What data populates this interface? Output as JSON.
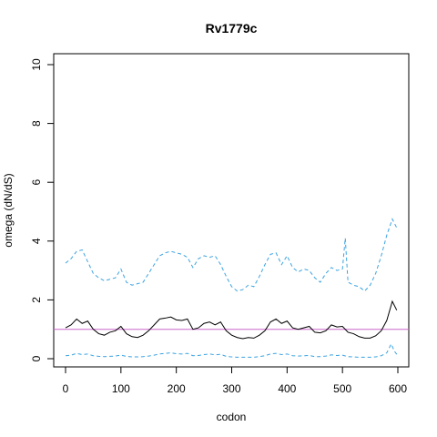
{
  "chart_data": {
    "type": "line",
    "title": "Rv1779c",
    "xlabel": "codon",
    "ylabel": "omega (dN/dS)",
    "xlim": [
      0,
      600
    ],
    "ylim": [
      0,
      10
    ],
    "x_ticks": [
      0,
      100,
      200,
      300,
      400,
      500,
      600
    ],
    "y_ticks": [
      0,
      2,
      4,
      6,
      8,
      10
    ],
    "reference_line": {
      "y": 1,
      "color": "#cc66cc"
    },
    "grid": false,
    "legend": "none",
    "series": [
      {
        "role": "estimate",
        "color": "#000000",
        "style": "solid",
        "points": [
          [
            0,
            1.05
          ],
          [
            10,
            1.15
          ],
          [
            20,
            1.35
          ],
          [
            30,
            1.2
          ],
          [
            40,
            1.28
          ],
          [
            50,
            1.0
          ],
          [
            60,
            0.85
          ],
          [
            70,
            0.8
          ],
          [
            80,
            0.9
          ],
          [
            90,
            0.95
          ],
          [
            100,
            1.1
          ],
          [
            110,
            0.85
          ],
          [
            120,
            0.75
          ],
          [
            130,
            0.72
          ],
          [
            140,
            0.8
          ],
          [
            150,
            0.95
          ],
          [
            160,
            1.15
          ],
          [
            170,
            1.35
          ],
          [
            180,
            1.38
          ],
          [
            190,
            1.42
          ],
          [
            200,
            1.32
          ],
          [
            210,
            1.3
          ],
          [
            220,
            1.35
          ],
          [
            230,
            1.0
          ],
          [
            240,
            1.05
          ],
          [
            250,
            1.2
          ],
          [
            260,
            1.25
          ],
          [
            270,
            1.15
          ],
          [
            280,
            1.25
          ],
          [
            290,
            0.95
          ],
          [
            300,
            0.8
          ],
          [
            310,
            0.72
          ],
          [
            320,
            0.68
          ],
          [
            330,
            0.72
          ],
          [
            340,
            0.7
          ],
          [
            350,
            0.8
          ],
          [
            360,
            0.95
          ],
          [
            370,
            1.25
          ],
          [
            380,
            1.35
          ],
          [
            390,
            1.2
          ],
          [
            400,
            1.28
          ],
          [
            410,
            1.05
          ],
          [
            420,
            1.0
          ],
          [
            430,
            1.05
          ],
          [
            440,
            1.1
          ],
          [
            450,
            0.9
          ],
          [
            460,
            0.88
          ],
          [
            470,
            0.95
          ],
          [
            480,
            1.15
          ],
          [
            490,
            1.08
          ],
          [
            500,
            1.1
          ],
          [
            510,
            0.9
          ],
          [
            520,
            0.85
          ],
          [
            530,
            0.75
          ],
          [
            540,
            0.7
          ],
          [
            550,
            0.7
          ],
          [
            560,
            0.78
          ],
          [
            570,
            0.95
          ],
          [
            580,
            1.3
          ],
          [
            590,
            1.95
          ],
          [
            598,
            1.65
          ]
        ]
      },
      {
        "role": "upper bound",
        "color": "#3ba3e0",
        "style": "dashed",
        "points": [
          [
            0,
            3.25
          ],
          [
            10,
            3.4
          ],
          [
            20,
            3.65
          ],
          [
            30,
            3.7
          ],
          [
            40,
            3.3
          ],
          [
            50,
            2.9
          ],
          [
            60,
            2.75
          ],
          [
            70,
            2.65
          ],
          [
            80,
            2.7
          ],
          [
            90,
            2.75
          ],
          [
            100,
            3.05
          ],
          [
            110,
            2.6
          ],
          [
            120,
            2.5
          ],
          [
            130,
            2.55
          ],
          [
            140,
            2.6
          ],
          [
            150,
            2.9
          ],
          [
            160,
            3.2
          ],
          [
            170,
            3.5
          ],
          [
            180,
            3.6
          ],
          [
            190,
            3.65
          ],
          [
            200,
            3.6
          ],
          [
            210,
            3.55
          ],
          [
            220,
            3.45
          ],
          [
            230,
            3.1
          ],
          [
            240,
            3.4
          ],
          [
            250,
            3.5
          ],
          [
            260,
            3.45
          ],
          [
            270,
            3.5
          ],
          [
            280,
            3.2
          ],
          [
            290,
            2.8
          ],
          [
            300,
            2.45
          ],
          [
            310,
            2.3
          ],
          [
            320,
            2.35
          ],
          [
            330,
            2.5
          ],
          [
            340,
            2.45
          ],
          [
            350,
            2.8
          ],
          [
            360,
            3.2
          ],
          [
            370,
            3.55
          ],
          [
            380,
            3.6
          ],
          [
            390,
            3.2
          ],
          [
            400,
            3.5
          ],
          [
            410,
            3.1
          ],
          [
            420,
            2.95
          ],
          [
            430,
            3.05
          ],
          [
            440,
            3.0
          ],
          [
            450,
            2.75
          ],
          [
            460,
            2.6
          ],
          [
            470,
            2.9
          ],
          [
            480,
            3.1
          ],
          [
            490,
            3.0
          ],
          [
            500,
            3.05
          ],
          [
            505,
            4.1
          ],
          [
            510,
            2.6
          ],
          [
            520,
            2.5
          ],
          [
            530,
            2.45
          ],
          [
            540,
            2.3
          ],
          [
            550,
            2.5
          ],
          [
            560,
            2.9
          ],
          [
            570,
            3.5
          ],
          [
            580,
            4.2
          ],
          [
            590,
            4.75
          ],
          [
            598,
            4.45
          ]
        ]
      },
      {
        "role": "lower bound",
        "color": "#3ba3e0",
        "style": "dashed",
        "points": [
          [
            0,
            0.1
          ],
          [
            10,
            0.12
          ],
          [
            20,
            0.18
          ],
          [
            30,
            0.14
          ],
          [
            40,
            0.16
          ],
          [
            50,
            0.1
          ],
          [
            60,
            0.08
          ],
          [
            70,
            0.07
          ],
          [
            80,
            0.08
          ],
          [
            90,
            0.09
          ],
          [
            100,
            0.12
          ],
          [
            110,
            0.08
          ],
          [
            120,
            0.06
          ],
          [
            130,
            0.06
          ],
          [
            140,
            0.07
          ],
          [
            150,
            0.09
          ],
          [
            160,
            0.12
          ],
          [
            170,
            0.16
          ],
          [
            180,
            0.18
          ],
          [
            190,
            0.2
          ],
          [
            200,
            0.17
          ],
          [
            210,
            0.16
          ],
          [
            220,
            0.18
          ],
          [
            230,
            0.1
          ],
          [
            240,
            0.11
          ],
          [
            250,
            0.14
          ],
          [
            260,
            0.16
          ],
          [
            270,
            0.13
          ],
          [
            280,
            0.15
          ],
          [
            290,
            0.08
          ],
          [
            300,
            0.06
          ],
          [
            310,
            0.05
          ],
          [
            320,
            0.05
          ],
          [
            330,
            0.05
          ],
          [
            340,
            0.05
          ],
          [
            350,
            0.07
          ],
          [
            360,
            0.1
          ],
          [
            370,
            0.16
          ],
          [
            380,
            0.18
          ],
          [
            390,
            0.14
          ],
          [
            400,
            0.16
          ],
          [
            410,
            0.1
          ],
          [
            420,
            0.09
          ],
          [
            430,
            0.1
          ],
          [
            440,
            0.11
          ],
          [
            450,
            0.07
          ],
          [
            460,
            0.07
          ],
          [
            470,
            0.09
          ],
          [
            480,
            0.13
          ],
          [
            490,
            0.11
          ],
          [
            500,
            0.12
          ],
          [
            510,
            0.07
          ],
          [
            520,
            0.06
          ],
          [
            530,
            0.05
          ],
          [
            540,
            0.05
          ],
          [
            550,
            0.05
          ],
          [
            560,
            0.06
          ],
          [
            570,
            0.1
          ],
          [
            580,
            0.2
          ],
          [
            588,
            0.5
          ],
          [
            594,
            0.25
          ],
          [
            598,
            0.15
          ]
        ]
      }
    ]
  }
}
